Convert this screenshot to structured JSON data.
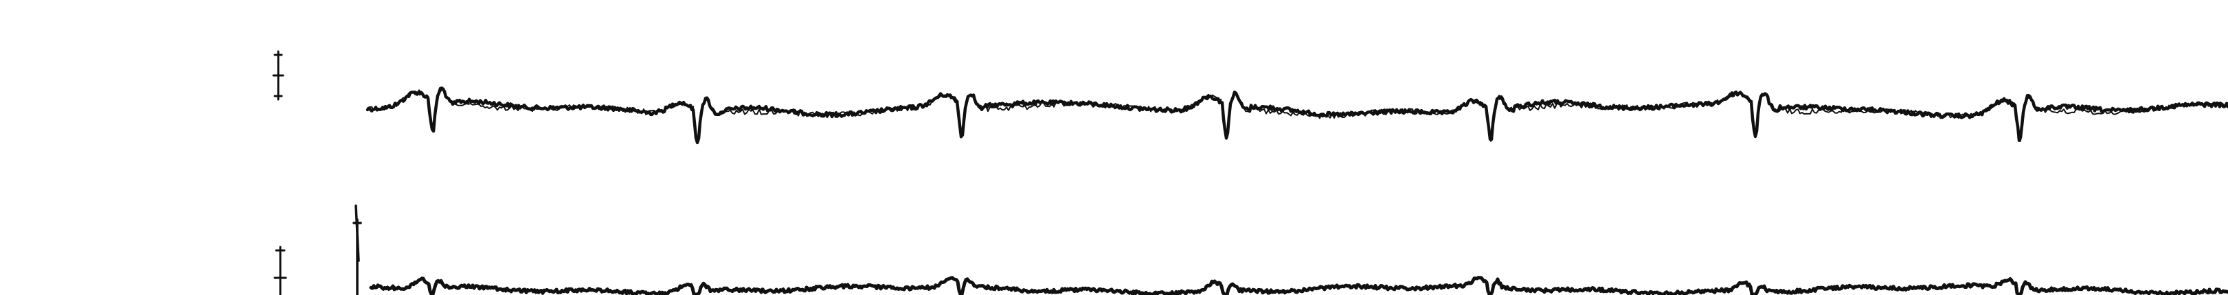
{
  "strip": {
    "background": "#ffffff",
    "trace_color": "#111111",
    "leads": [
      {
        "label": ""
      },
      {
        "label": ""
      }
    ]
  }
}
